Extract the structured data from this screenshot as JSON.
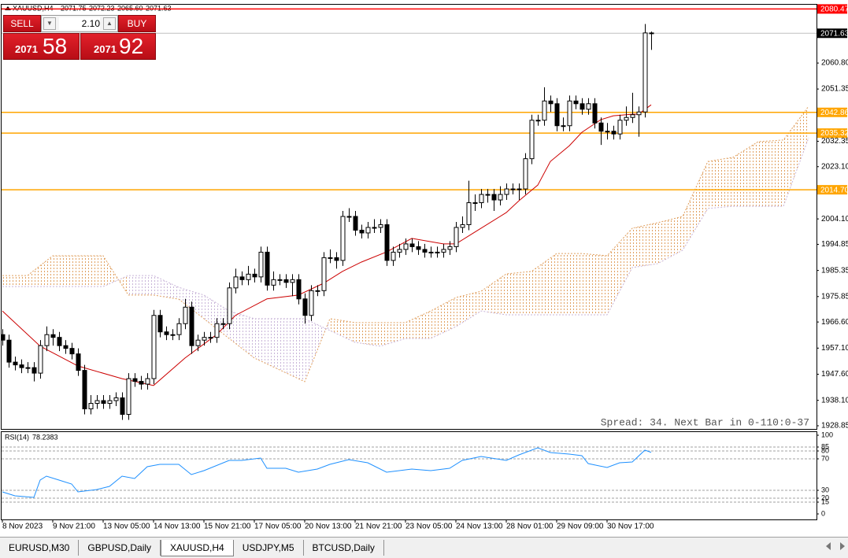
{
  "chart_data": {
    "type": "candlestick",
    "symbol": "XAUUSD,H4",
    "header_ohlc": [
      "2071.75",
      "2072.23",
      "2065.60",
      "2071.63"
    ],
    "info_text": "Spread: 34. Next Bar in 0-110:0-37",
    "categories": [
      "8 Nov 2023",
      null,
      null,
      null,
      null,
      null,
      null,
      null,
      "9 Nov 21:00",
      null,
      null,
      null,
      null,
      null,
      null,
      null,
      "13 Nov 05:00",
      null,
      null,
      null,
      null,
      null,
      null,
      null,
      "14 Nov 13:00",
      null,
      null,
      null,
      null,
      null,
      null,
      null,
      "15 Nov 21:00",
      null,
      null,
      null,
      null,
      null,
      null,
      null,
      "17 Nov 05:00",
      null,
      null,
      null,
      null,
      null,
      null,
      null,
      "20 Nov 13:00",
      null,
      null,
      null,
      null,
      null,
      null,
      null,
      "21 Nov 21:00",
      null,
      null,
      null,
      null,
      null,
      null,
      null,
      "23 Nov 05:00",
      null,
      null,
      null,
      null,
      null,
      null,
      null,
      "24 Nov 13:00",
      null,
      null,
      null,
      null,
      null,
      null,
      null,
      "28 Nov 01:00",
      null,
      null,
      null,
      null,
      null,
      null,
      null,
      "29 Nov 09:00",
      null,
      null,
      null,
      null,
      null,
      null,
      null,
      "30 Nov 17:00",
      null,
      null,
      null,
      null,
      null,
      null,
      null
    ],
    "open": [
      1962,
      1960,
      1952,
      1951,
      1950,
      1950,
      1948,
      1958,
      1962,
      1961,
      1958,
      1957,
      1955,
      1949,
      1935,
      1937,
      1938,
      1937,
      1938,
      1939,
      1933,
      1946,
      1945,
      1944,
      1946,
      1969,
      1963,
      1962,
      1962,
      1966,
      1972,
      1958,
      1960,
      1961,
      1961,
      1966,
      1966,
      1979,
      1983,
      1982,
      1984,
      1983,
      1992,
      1980,
      1982,
      1982,
      1981,
      1982,
      1975,
      1969,
      1978,
      1978,
      1990,
      1990,
      1989,
      2005,
      2005,
      2000,
      1999,
      2001,
      2001,
      2002,
      1989,
      1992,
      1993,
      1995,
      1994,
      1993,
      1992,
      1992,
      1992,
      1993,
      1994,
      2001,
      2002,
      2010,
      2010,
      2013,
      2013,
      2011,
      2013,
      2015,
      2015,
      2015,
      2026,
      2040,
      2040,
      2047,
      2046,
      2038,
      2038,
      2047,
      2046,
      2044,
      2046,
      2039,
      2036,
      2036,
      2035,
      2040,
      2041,
      2042,
      2043,
      2071.75
    ],
    "high": [
      1964,
      1962,
      1954,
      1953,
      1952,
      1952,
      1960,
      1965,
      1964,
      1963,
      1960,
      1959,
      1957,
      1951,
      1940,
      1940,
      1940,
      1940,
      1941,
      1941,
      1948,
      1948,
      1947,
      1948,
      1971,
      1971,
      1965,
      1964,
      1968,
      1975,
      1974,
      1962,
      1963,
      1963,
      1968,
      1968,
      1981,
      1986,
      1985,
      1987,
      1986,
      1994,
      1994,
      1985,
      1984,
      1984,
      1984,
      1984,
      1977,
      1980,
      1980,
      1992,
      1993,
      1992,
      2007,
      2008,
      2007,
      2002,
      2003,
      2004,
      2004,
      2004,
      1994,
      1995,
      1997,
      1997,
      1996,
      1995,
      1994,
      1994,
      1995,
      1996,
      2003,
      2005,
      2018,
      2013,
      2015,
      2015,
      2015,
      2016,
      2017,
      2017,
      2017,
      2028,
      2042,
      2042,
      2052,
      2049,
      2048,
      2041,
      2049,
      2049,
      2048,
      2048,
      2048,
      2041,
      2039,
      2038,
      2042,
      2045,
      2050,
      2045,
      2075,
      2072.23
    ],
    "low": [
      1958,
      1950,
      1949,
      1948,
      1948,
      1945,
      1946,
      1956,
      1958,
      1956,
      1955,
      1953,
      1947,
      1933,
      1933,
      1935,
      1935,
      1935,
      1936,
      1931,
      1931,
      1943,
      1942,
      1942,
      1944,
      1961,
      1960,
      1960,
      1960,
      1964,
      1955,
      1956,
      1958,
      1959,
      1959,
      1964,
      1964,
      1977,
      1980,
      1980,
      1981,
      1981,
      1978,
      1978,
      1980,
      1979,
      1976,
      1973,
      1966,
      1967,
      1976,
      1976,
      1988,
      1986,
      1987,
      2003,
      1998,
      1997,
      1997,
      1999,
      1999,
      1987,
      1987,
      1990,
      1991,
      1992,
      1991,
      1990,
      1990,
      1990,
      1990,
      1991,
      1992,
      1999,
      2000,
      2007,
      2008,
      2010,
      2007,
      2009,
      2011,
      2013,
      2011,
      2013,
      2024,
      2038,
      2038,
      2043,
      2036,
      2036,
      2036,
      2044,
      2042,
      2042,
      2037,
      2031,
      2033,
      2033,
      2033,
      2038,
      2039,
      2034,
      2041,
      2065.6
    ],
    "close": [
      1960,
      1952,
      1951,
      1950,
      1950,
      1948,
      1958,
      1962,
      1961,
      1958,
      1957,
      1955,
      1949,
      1935,
      1937,
      1938,
      1937,
      1938,
      1939,
      1933,
      1946,
      1945,
      1944,
      1946,
      1969,
      1963,
      1962,
      1962,
      1966,
      1972,
      1958,
      1960,
      1961,
      1961,
      1966,
      1966,
      1979,
      1983,
      1982,
      1984,
      1983,
      1992,
      1980,
      1982,
      1982,
      1981,
      1982,
      1975,
      1969,
      1978,
      1978,
      1990,
      1990,
      1989,
      2005,
      2005,
      2000,
      1999,
      2001,
      2001,
      2002,
      1989,
      1992,
      1993,
      1995,
      1994,
      1993,
      1992,
      1992,
      1992,
      1993,
      1994,
      2001,
      2002,
      2010,
      2010,
      2013,
      2013,
      2011,
      2013,
      2015,
      2015,
      2015,
      2026,
      2040,
      2040,
      2047,
      2046,
      2038,
      2038,
      2047,
      2046,
      2044,
      2046,
      2039,
      2036,
      2036,
      2035,
      2040,
      2041,
      2042,
      2043,
      2071.75,
      2071.63
    ],
    "up_color": "#ffffff",
    "down_color": "#000000",
    "wick_color": "#000000",
    "ylim": [
      1927.7,
      2082.3
    ],
    "yticks": [
      {
        "value": 2060.8,
        "label": "2060.80"
      },
      2051.35,
      2032.35,
      {
        "value": 2023.1,
        "label": "2023.10"
      },
      {
        "value": 2004.1,
        "label": "2004.10"
      },
      1994.85,
      1985.35,
      1975.85,
      {
        "value": 1966.6,
        "label": "1966.60"
      },
      {
        "value": 1957.1,
        "label": "1957.10"
      },
      {
        "value": 1947.6,
        "label": "1947.60"
      },
      {
        "value": 1938.1,
        "label": "1938.10"
      },
      1928.85
    ],
    "bid_color": "#c0c0c0",
    "hlines": [
      {
        "value": 2080.47,
        "color": "#ff0000",
        "text_color": "#ffffff"
      },
      {
        "value": 2042.86,
        "color": "#ffa500",
        "text_color": "#ffffff"
      },
      {
        "value": 2035.32,
        "color": "#ffa500",
        "text_color": "#ffffff"
      },
      {
        "value": 2014.7,
        "label": "2014.70",
        "color": "#ffa500",
        "text_color": "#ffffff"
      }
    ],
    "ma": {
      "color": "#cc0000",
      "x": [
        0,
        6,
        12,
        19,
        24,
        29,
        34,
        37,
        42,
        47,
        51,
        54,
        57,
        61,
        65,
        70,
        72,
        75,
        80,
        82,
        85,
        87,
        90,
        92,
        95,
        97,
        100,
        101,
        103
      ],
      "values": [
        1970.6,
        1957.8,
        1950.6,
        1946,
        1943.5,
        1953.5,
        1962,
        1969,
        1975,
        1976.4,
        1980.7,
        1985,
        1988.4,
        1992.1,
        1997,
        1995,
        1995,
        1999.3,
        2006.4,
        2010.7,
        2016.4,
        2025,
        2030.7,
        2035.6,
        2040.2,
        2041.6,
        2042.2,
        2042.2,
        2045.6
      ]
    },
    "cloud": {
      "up_color": "#e0a060",
      "down_color": "#c8b4d8",
      "x": [
        0,
        4,
        8,
        12,
        16,
        20,
        24,
        28,
        32,
        36,
        40,
        44,
        48,
        52,
        56,
        60,
        64,
        68,
        72,
        76,
        80,
        84,
        88,
        92,
        96,
        100,
        104,
        108,
        112,
        116,
        120,
        124,
        128
      ],
      "span_a": [
        1983.5,
        1983.5,
        1990.7,
        1990.7,
        1990.7,
        1976.4,
        1976.4,
        1974.9,
        1967.8,
        1960.6,
        1953.5,
        1949.2,
        1944.9,
        1967.8,
        1966.4,
        1966.4,
        1966.4,
        1970.6,
        1975.5,
        1977.8,
        1984.1,
        1985,
        1991.5,
        1991.5,
        1990.7,
        2000.7,
        2002.7,
        2005,
        2025,
        2026.5,
        2032.2,
        2032.8,
        2045.1
      ],
      "span_b": [
        1979.5,
        1979.5,
        1979.5,
        1979.5,
        1979.5,
        1983.5,
        1983.5,
        1979.2,
        1976.4,
        1970.6,
        1967.8,
        1967.8,
        1967.8,
        1963.5,
        1959.2,
        1957.8,
        1960.6,
        1960.6,
        1964.9,
        1970.6,
        1969.2,
        1969.2,
        1969.2,
        1969.2,
        1969.2,
        1986.4,
        1987.8,
        1992.7,
        2007.9,
        2008.7,
        2008.7,
        2008.7,
        2033.6
      ]
    },
    "rsi": {
      "title": "RSI(14)",
      "color": "#1e90ff",
      "ylim": [
        -7,
        105
      ],
      "yticks": [
        100,
        85,
        80,
        70,
        30,
        20,
        15,
        0
      ],
      "levels": [
        85,
        80,
        70,
        30,
        20,
        15
      ],
      "x": [
        0,
        2,
        5,
        6,
        7,
        9,
        11,
        12,
        15,
        17,
        19,
        21,
        23,
        25,
        28,
        30,
        32,
        36,
        38,
        41,
        42,
        45,
        47,
        50,
        52,
        55,
        58,
        61,
        65,
        68,
        71,
        73,
        76,
        80,
        82,
        85,
        87,
        90,
        92,
        93,
        96,
        98,
        100,
        102,
        103
      ],
      "values": [
        28,
        23,
        21,
        43,
        48,
        43,
        38,
        28,
        31,
        35,
        48,
        45,
        60,
        63,
        63,
        50,
        55,
        68,
        68,
        71,
        58,
        58,
        53,
        57,
        63,
        69,
        65,
        53,
        57,
        55,
        58,
        68,
        73,
        68,
        75,
        84,
        78,
        76,
        74,
        64,
        59,
        65,
        66,
        81,
        78.2383
      ]
    }
  },
  "trade_panel": {
    "sell": "SELL",
    "buy": "BUY",
    "lots": "2.10",
    "bid_prefix": "2071",
    "bid_big": "58",
    "ask_prefix": "2071",
    "ask_big": "92"
  },
  "tabs": [
    "EURUSD,M30",
    "GBPUSD,Daily",
    "XAUUSD,H4",
    "USDJPY,M5",
    "BTCUSD,Daily"
  ],
  "active_tab": 2
}
